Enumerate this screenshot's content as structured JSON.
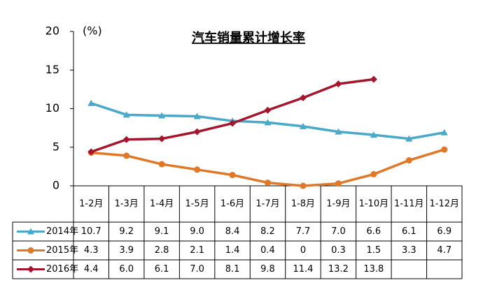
{
  "chart_data": {
    "type": "line",
    "title": "汽车销量累计增长率",
    "y_label": "(%)",
    "categories": [
      "1-2月",
      "1-3月",
      "1-4月",
      "1-5月",
      "1-6月",
      "1-7月",
      "1-8月",
      "1-9月",
      "1-10月",
      "1-11月",
      "1-12月"
    ],
    "series": [
      {
        "name": "2014年",
        "color": "#4aa8c8",
        "marker": "triangle",
        "values": [
          10.7,
          9.2,
          9.1,
          9.0,
          8.4,
          8.2,
          7.7,
          7.0,
          6.6,
          6.1,
          6.9
        ],
        "value_labels": [
          "10.7",
          "9.2",
          "9.1",
          "9.0",
          "8.4",
          "8.2",
          "7.7",
          "7.0",
          "6.6",
          "6.1",
          "6.9"
        ]
      },
      {
        "name": "2015年",
        "color": "#e0782a",
        "marker": "circle",
        "values": [
          4.3,
          3.9,
          2.8,
          2.1,
          1.4,
          0.4,
          0,
          0.3,
          1.5,
          3.3,
          4.7
        ],
        "value_labels": [
          "4.3",
          "3.9",
          "2.8",
          "2.1",
          "1.4",
          "0.4",
          "0",
          "0.3",
          "1.5",
          "3.3",
          "4.7"
        ]
      },
      {
        "name": "2016年",
        "color": "#a3162c",
        "marker": "diamond",
        "values": [
          4.4,
          6.0,
          6.1,
          7.0,
          8.1,
          9.8,
          11.4,
          13.2,
          13.8,
          null,
          null
        ],
        "value_labels": [
          "4.4",
          "6.0",
          "6.1",
          "7.0",
          "8.1",
          "9.8",
          "11.4",
          "13.2",
          "13.8",
          null,
          null
        ]
      }
    ],
    "ylim": [
      0,
      20
    ],
    "yticks": [
      0,
      5,
      10,
      15,
      20
    ]
  }
}
